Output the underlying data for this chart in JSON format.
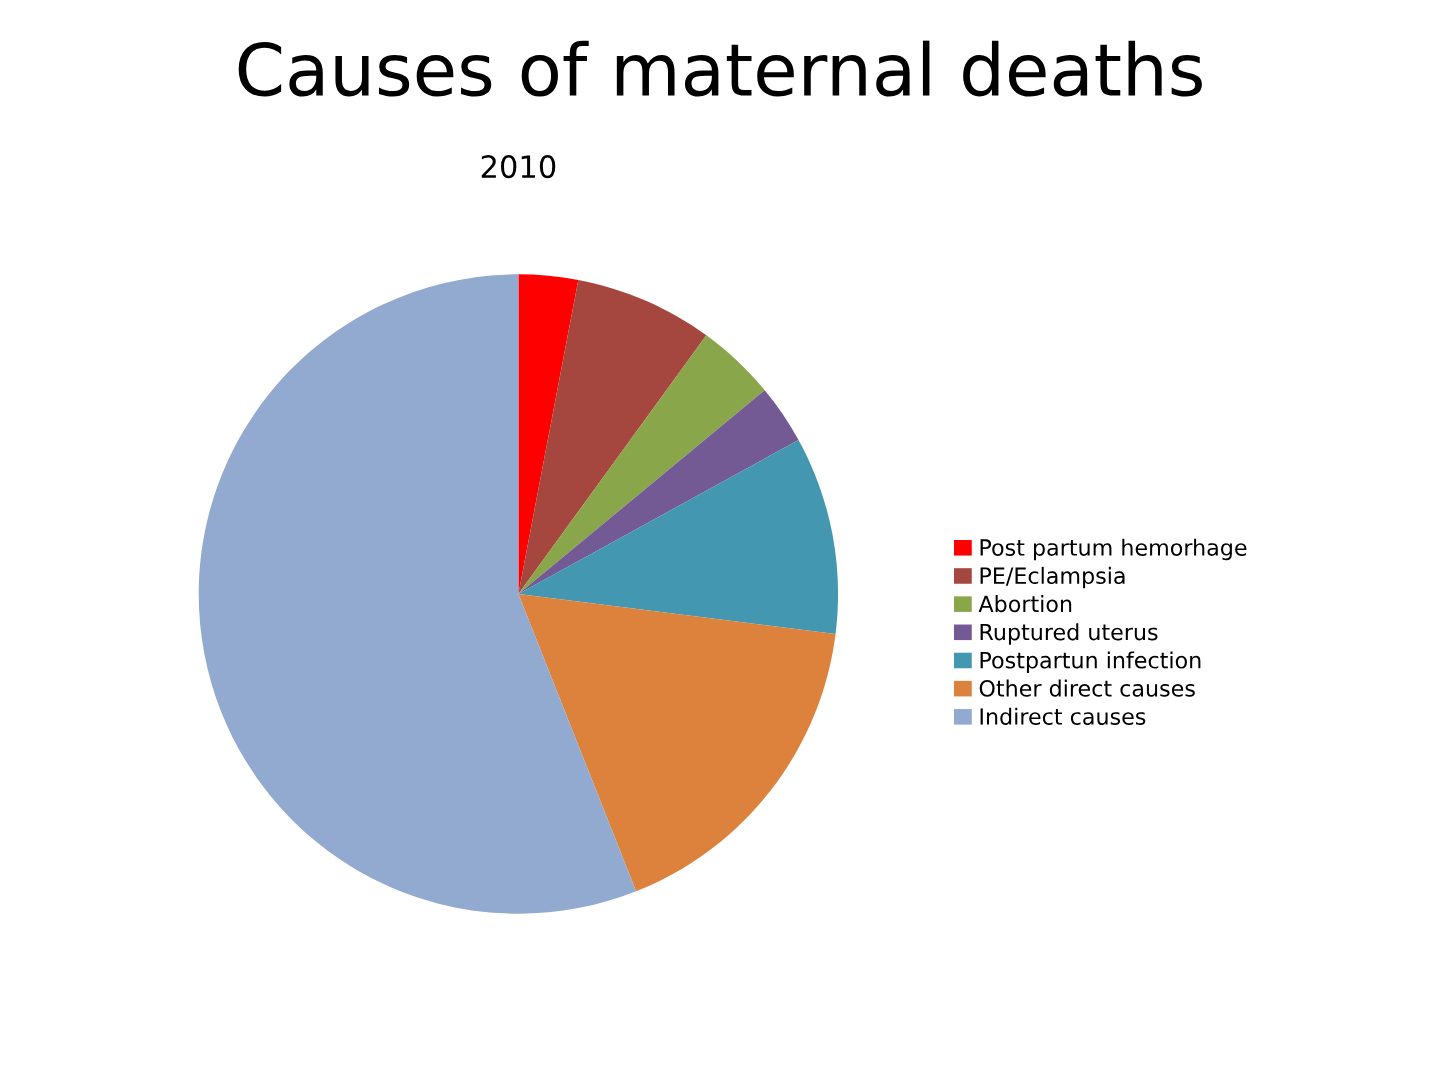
{
  "chart_data": {
    "type": "pie",
    "title": "Causes of maternal deaths",
    "subtitle": "2010",
    "categories": [
      "Post partum hemorhage",
      "PE/Eclampsia",
      "Abortion",
      "Ruptured uterus",
      "Postpartun infection",
      "Other direct causes",
      "Indirect causes"
    ],
    "values": [
      3,
      7,
      4,
      3,
      10,
      17,
      56
    ],
    "colors": [
      "#ff0000",
      "#a5473f",
      "#8aa64a",
      "#735a94",
      "#4497b0",
      "#dc823c",
      "#92a9d0"
    ],
    "legend": "right"
  }
}
